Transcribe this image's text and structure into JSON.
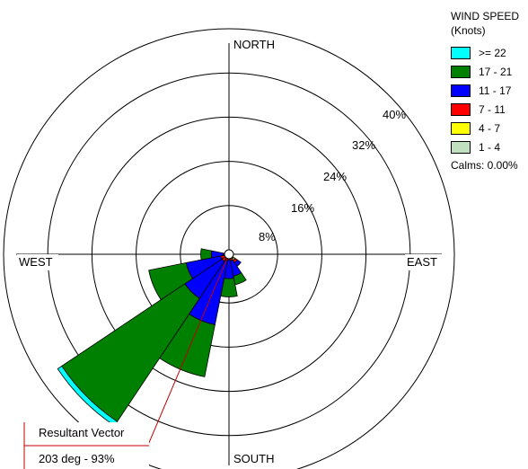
{
  "chart_data": {
    "type": "wind-rose",
    "legend_title_line1": "WIND SPEED",
    "legend_title_line2": "(Knots)",
    "calms_label": "Calms: 0.00%",
    "directions": [
      "NORTH",
      "EAST",
      "SOUTH",
      "WEST"
    ],
    "ring_labels": [
      "8%",
      "16%",
      "24%",
      "32%",
      "40%"
    ],
    "ring_values": [
      8,
      16,
      24,
      32,
      40
    ],
    "speed_classes": [
      {
        "label": ">= 22",
        "color": "#00ffff"
      },
      {
        "label": "17 - 21",
        "color": "#008000"
      },
      {
        "label": "11 - 17",
        "color": "#0000ff"
      },
      {
        "label": "7 - 11",
        "color": "#ff0000"
      },
      {
        "label": "4 - 7",
        "color": "#ffff00"
      },
      {
        "label": "1 - 4",
        "color": "#c0e0c0"
      }
    ],
    "petals": [
      {
        "center_deg": 135,
        "values": [
          0,
          0,
          0.8,
          0.5,
          0.3,
          0.2
        ]
      },
      {
        "center_deg": 157.5,
        "values": [
          0,
          1.6,
          2.8,
          0.4,
          0,
          0
        ]
      },
      {
        "center_deg": 180,
        "values": [
          0,
          3.3,
          3.4,
          0.2,
          0,
          0
        ]
      },
      {
        "center_deg": 202.5,
        "values": [
          0,
          9.6,
          11.8,
          0.4,
          0,
          0
        ]
      },
      {
        "center_deg": 225,
        "values": [
          0.9,
          26.8,
          8.1,
          0.7,
          0,
          0
        ]
      },
      {
        "center_deg": 247.5,
        "values": [
          0,
          6.9,
          6.4,
          0.7,
          0,
          0
        ]
      },
      {
        "center_deg": 270,
        "values": [
          0,
          1.9,
          2.2,
          0.2,
          0,
          0
        ]
      }
    ],
    "resultant_vector": {
      "direction_deg": 203,
      "line1": "Resultant Vector",
      "line2": "203 deg - 93%"
    }
  }
}
